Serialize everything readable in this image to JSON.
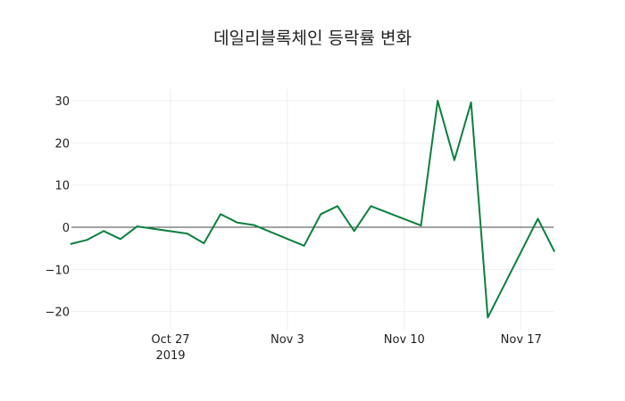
{
  "chart_data": {
    "type": "line",
    "title": "데일리블록체인 등락률 변화",
    "xlabel": "",
    "ylabel": "",
    "ylim": [
      -24,
      33
    ],
    "grid": true,
    "legend": null,
    "yticks": [
      30,
      20,
      10,
      0,
      -10,
      -20
    ],
    "ytick_labels": [
      "30",
      "20",
      "10",
      "0",
      "−10",
      "−20"
    ],
    "xticks": [
      "2019-10-27",
      "2019-11-03",
      "2019-11-10",
      "2019-11-17"
    ],
    "xtick_labels": [
      "Oct 27",
      "Nov 3",
      "Nov 10",
      "Nov 17"
    ],
    "xtick_year_label": "2019",
    "line_color": "#0c7f3f",
    "series": [
      {
        "name": "등락률",
        "x": [
          "2019-10-21",
          "2019-10-22",
          "2019-10-23",
          "2019-10-24",
          "2019-10-25",
          "2019-10-28",
          "2019-10-29",
          "2019-10-30",
          "2019-10-31",
          "2019-11-01",
          "2019-11-04",
          "2019-11-05",
          "2019-11-06",
          "2019-11-07",
          "2019-11-08",
          "2019-11-11",
          "2019-11-12",
          "2019-11-13",
          "2019-11-14",
          "2019-11-15",
          "2019-11-18",
          "2019-11-19"
        ],
        "values": [
          -4.0,
          -3.0,
          -0.9,
          -2.8,
          0.2,
          -1.5,
          -3.8,
          3.1,
          1.1,
          0.5,
          -4.4,
          3.1,
          5.0,
          -0.9,
          5.0,
          0.4,
          30.0,
          15.9,
          29.6,
          -21.4,
          2.0,
          -5.8
        ]
      }
    ]
  }
}
